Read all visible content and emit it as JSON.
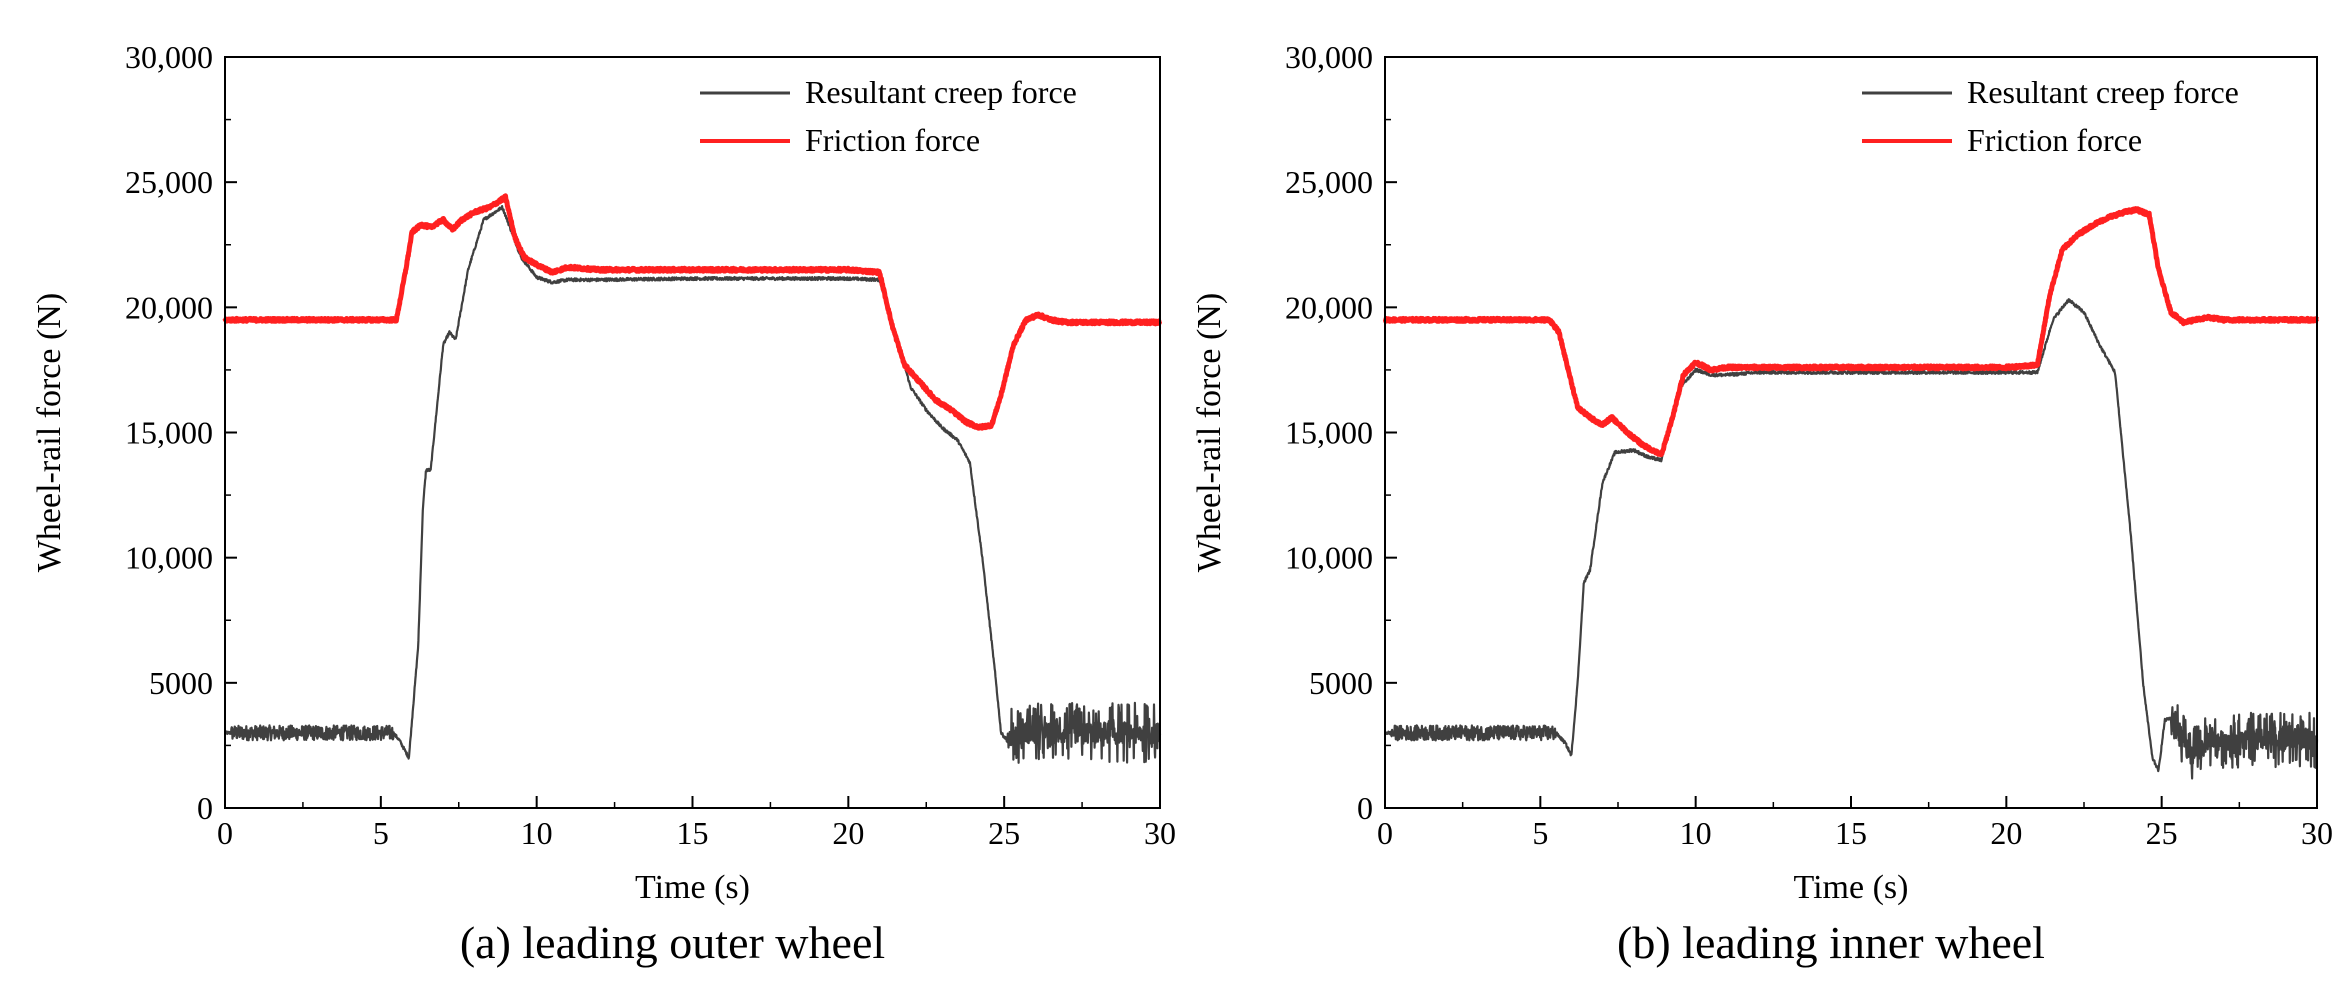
{
  "figure": {
    "panels_caption": [
      "(a) leading outer wheel",
      "(b) leading inner wheel"
    ]
  },
  "colors": {
    "creep": "#404040",
    "friction": "#ff2020",
    "axis": "#000000"
  },
  "chart_data": [
    {
      "type": "line",
      "caption": "(a) leading outer wheel",
      "title": "",
      "xlabel": "Time (s)",
      "ylabel": "Wheel-rail force (N)",
      "xlim": [
        0,
        30
      ],
      "ylim": [
        0,
        30000
      ],
      "xticks": [
        0,
        5,
        10,
        15,
        20,
        25,
        30
      ],
      "yticks": [
        0,
        5000,
        10000,
        15000,
        20000,
        25000,
        30000
      ],
      "ytick_labels": [
        "0",
        "5000",
        "10,000",
        "15,000",
        "20,000",
        "25,000",
        "30,000"
      ],
      "legend": [
        "Resultant creep force",
        "Friction force"
      ],
      "legend_position": "top-right",
      "series": [
        {
          "name": "Resultant creep force",
          "x": [
            0,
            5.4,
            5.6,
            5.9,
            6.0,
            6.2,
            6.35,
            6.45,
            6.6,
            6.8,
            7.0,
            7.2,
            7.4,
            7.8,
            8.3,
            8.9,
            9.2,
            9.5,
            10,
            10.5,
            11,
            12,
            15,
            20,
            21,
            21.5,
            22,
            22.5,
            23,
            23.5,
            23.9,
            24.3,
            24.7,
            24.9,
            25.1,
            25.3,
            26,
            27,
            28,
            29,
            30
          ],
          "values": [
            3000,
            3000,
            2700,
            2000,
            3500,
            6500,
            12000,
            13500,
            13500,
            16000,
            18500,
            19000,
            18700,
            21500,
            23500,
            24000,
            23000,
            22000,
            21200,
            21000,
            21100,
            21100,
            21150,
            21150,
            21100,
            19000,
            16800,
            15900,
            15200,
            14700,
            13800,
            10000,
            5500,
            3000,
            2700,
            3000,
            3000,
            3000,
            3000,
            3000,
            3000
          ],
          "noise_ranges": [
            [
              25.1,
              30,
              1200
            ],
            [
              0.2,
              5.4,
              300
            ]
          ]
        },
        {
          "name": "Friction force",
          "x": [
            0,
            5.5,
            5.8,
            6.0,
            6.3,
            6.6,
            7.0,
            7.3,
            7.6,
            8.0,
            8.5,
            9.0,
            9.3,
            9.6,
            10,
            10.5,
            11,
            12,
            15,
            20,
            21,
            21.4,
            21.8,
            22.3,
            22.8,
            23.3,
            23.8,
            24.2,
            24.6,
            24.9,
            25.3,
            25.7,
            26.1,
            26.5,
            27,
            30
          ],
          "values": [
            19500,
            19500,
            21500,
            23000,
            23300,
            23200,
            23500,
            23100,
            23500,
            23800,
            24000,
            24400,
            22800,
            22000,
            21700,
            21400,
            21600,
            21500,
            21500,
            21500,
            21400,
            19300,
            17700,
            17000,
            16300,
            15900,
            15400,
            15200,
            15300,
            16500,
            18500,
            19500,
            19700,
            19500,
            19400,
            19400
          ],
          "noise_ranges": []
        }
      ]
    },
    {
      "type": "line",
      "caption": "(b) leading inner wheel",
      "title": "",
      "xlabel": "Time (s)",
      "ylabel": "Wheel-rail force (N)",
      "xlim": [
        0,
        30
      ],
      "ylim": [
        0,
        30000
      ],
      "xticks": [
        0,
        5,
        10,
        15,
        20,
        25,
        30
      ],
      "yticks": [
        0,
        5000,
        10000,
        15000,
        20000,
        25000,
        30000
      ],
      "ytick_labels": [
        "0",
        "5000",
        "10,000",
        "15,000",
        "20,000",
        "25,000",
        "30,000"
      ],
      "legend": [
        "Resultant creep force",
        "Friction force"
      ],
      "legend_position": "top-right",
      "series": [
        {
          "name": "Resultant creep force",
          "x": [
            0,
            5.5,
            5.8,
            6.0,
            6.2,
            6.4,
            6.6,
            7.0,
            7.4,
            8.0,
            8.5,
            8.9,
            9.2,
            9.5,
            10,
            10.5,
            11,
            12,
            15,
            20,
            21,
            21.5,
            22,
            22.5,
            23,
            23.5,
            24.0,
            24.4,
            24.7,
            24.9,
            25.1,
            25.3,
            25.6,
            26.0,
            26.5,
            27,
            30
          ],
          "values": [
            3000,
            3000,
            2600,
            2100,
            5000,
            9000,
            9500,
            13000,
            14200,
            14300,
            14000,
            13900,
            15300,
            16800,
            17500,
            17300,
            17300,
            17400,
            17400,
            17400,
            17400,
            19500,
            20300,
            19800,
            18500,
            17400,
            11000,
            5000,
            2000,
            1500,
            3500,
            3600,
            2800,
            2100,
            2700,
            2700,
            2700
          ],
          "noise_ranges": [
            [
              25.3,
              30,
              1100
            ],
            [
              0.2,
              5.5,
              300
            ]
          ]
        },
        {
          "name": "Friction force",
          "x": [
            0,
            5.3,
            5.6,
            5.9,
            6.2,
            6.6,
            7.0,
            7.3,
            7.8,
            8.3,
            8.9,
            9.3,
            9.6,
            10,
            10.5,
            11,
            12,
            15,
            20,
            21,
            21.4,
            21.8,
            22.3,
            22.8,
            23.3,
            23.8,
            24.2,
            24.6,
            24.9,
            25.3,
            25.7,
            26.1,
            26.5,
            27,
            30
          ],
          "values": [
            19500,
            19500,
            19000,
            17500,
            16000,
            15600,
            15300,
            15600,
            15000,
            14500,
            14100,
            15800,
            17300,
            17800,
            17500,
            17600,
            17600,
            17600,
            17600,
            17700,
            20500,
            22300,
            22900,
            23300,
            23600,
            23800,
            23900,
            23700,
            21500,
            19800,
            19400,
            19500,
            19600,
            19500,
            19500
          ],
          "noise_ranges": []
        }
      ]
    }
  ]
}
